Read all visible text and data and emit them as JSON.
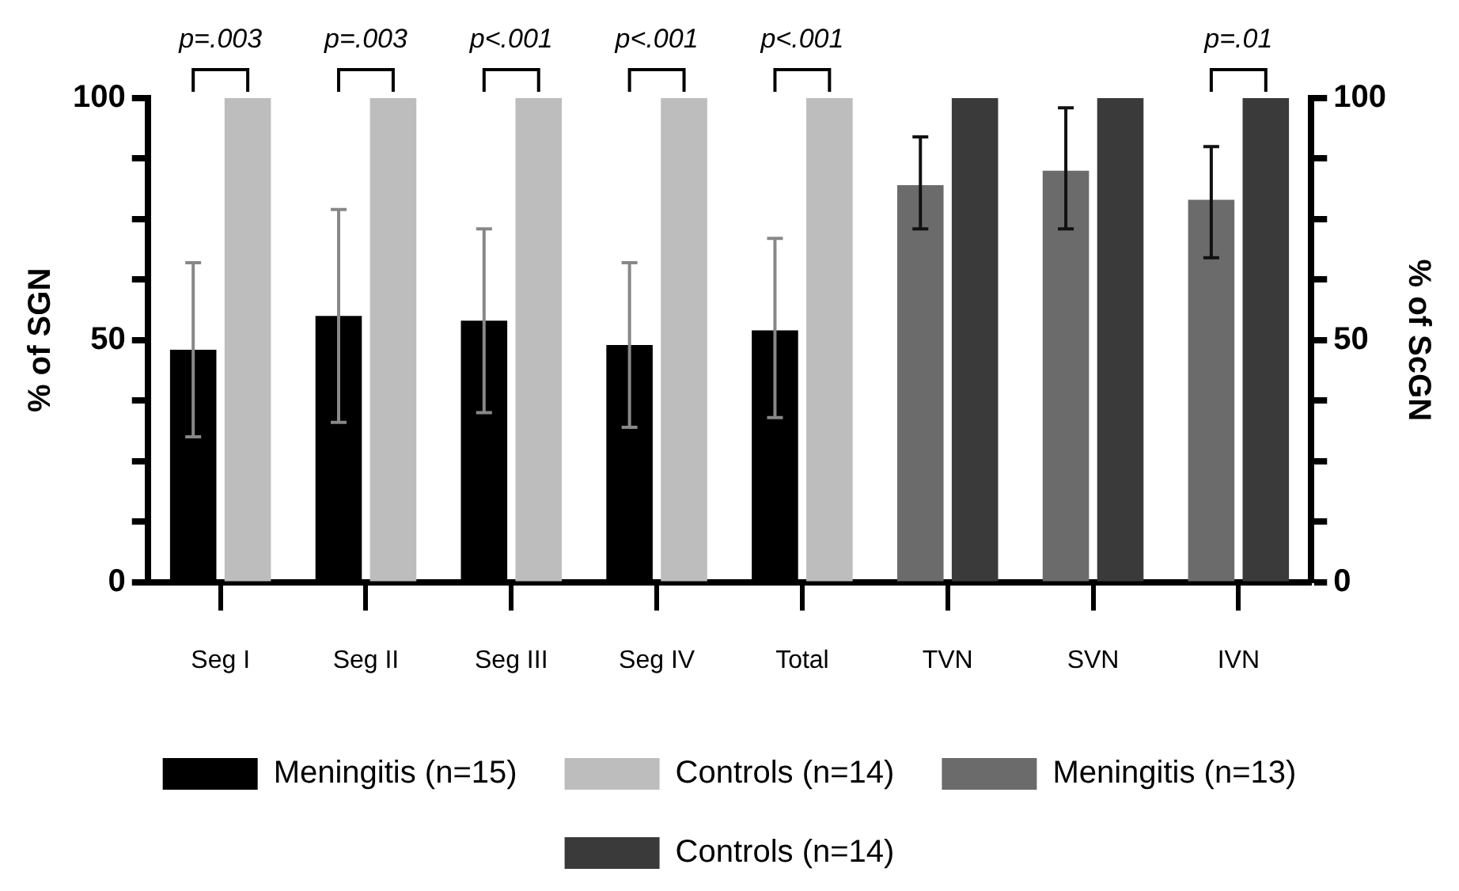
{
  "chart_data": {
    "type": "bar",
    "ylabel": "% of SGN",
    "y2label": "% of ScGN",
    "categories": [
      "Seg I",
      "Seg II",
      "Seg III",
      "Seg IV",
      "Total",
      "TVN",
      "SVN",
      "IVN"
    ],
    "series": [
      {
        "name": "Meningitis (n=15)",
        "color": "#000000",
        "values": [
          48,
          55,
          54,
          49,
          52,
          null,
          null,
          null
        ],
        "errors": [
          [
            30,
            66
          ],
          [
            33,
            77
          ],
          [
            35,
            73
          ],
          [
            32,
            66
          ],
          [
            34,
            71
          ],
          null,
          null,
          null
        ]
      },
      {
        "name": "Controls (n=14)",
        "color": "#bdbdbd",
        "values": [
          100,
          100,
          100,
          100,
          100,
          null,
          null,
          null
        ]
      },
      {
        "name": "Meningitis (n=13)",
        "color": "#6b6b6b",
        "axis": "y2",
        "values": [
          null,
          null,
          null,
          null,
          null,
          82,
          85,
          79
        ],
        "errors": [
          null,
          null,
          null,
          null,
          null,
          [
            73,
            92
          ],
          [
            73,
            98
          ],
          [
            67,
            90
          ]
        ]
      },
      {
        "name": "Controls (n=14)",
        "color": "#3a3a3a",
        "axis": "y2",
        "values": [
          null,
          null,
          null,
          null,
          null,
          100,
          100,
          100
        ]
      }
    ],
    "ylim": [
      0,
      100
    ],
    "yticks": [
      0,
      {
        "value": 12.5,
        "label": null
      },
      {
        "value": 25,
        "label": null
      },
      {
        "value": 37.5,
        "label": null
      },
      50,
      {
        "value": 62.5,
        "label": null
      },
      {
        "value": 75,
        "label": null
      },
      {
        "value": 87.5,
        "label": null
      },
      100
    ],
    "y2lim": [
      0,
      100
    ],
    "y2ticks": [
      0,
      {
        "value": 12.5,
        "label": null
      },
      {
        "value": 25,
        "label": null
      },
      {
        "value": 37.5,
        "label": null
      },
      50,
      {
        "value": 62.5,
        "label": null
      },
      {
        "value": 75,
        "label": null
      },
      {
        "value": 87.5,
        "label": null
      },
      100
    ],
    "annotations": [
      {
        "text": "p=.003",
        "x": "Seg I",
        "y": 100
      },
      {
        "text": "p=.003",
        "x": "Seg II",
        "y": 100
      },
      {
        "text": "p<.001",
        "x": "Seg III",
        "y": 100
      },
      {
        "text": "p<.001",
        "x": "Seg IV",
        "y": 100
      },
      {
        "text": "p<.001",
        "x": "Total",
        "y": 100
      },
      {
        "text": "p=.01",
        "x": "IVN",
        "y": 100
      }
    ],
    "grid": false,
    "legend": "bottom"
  }
}
